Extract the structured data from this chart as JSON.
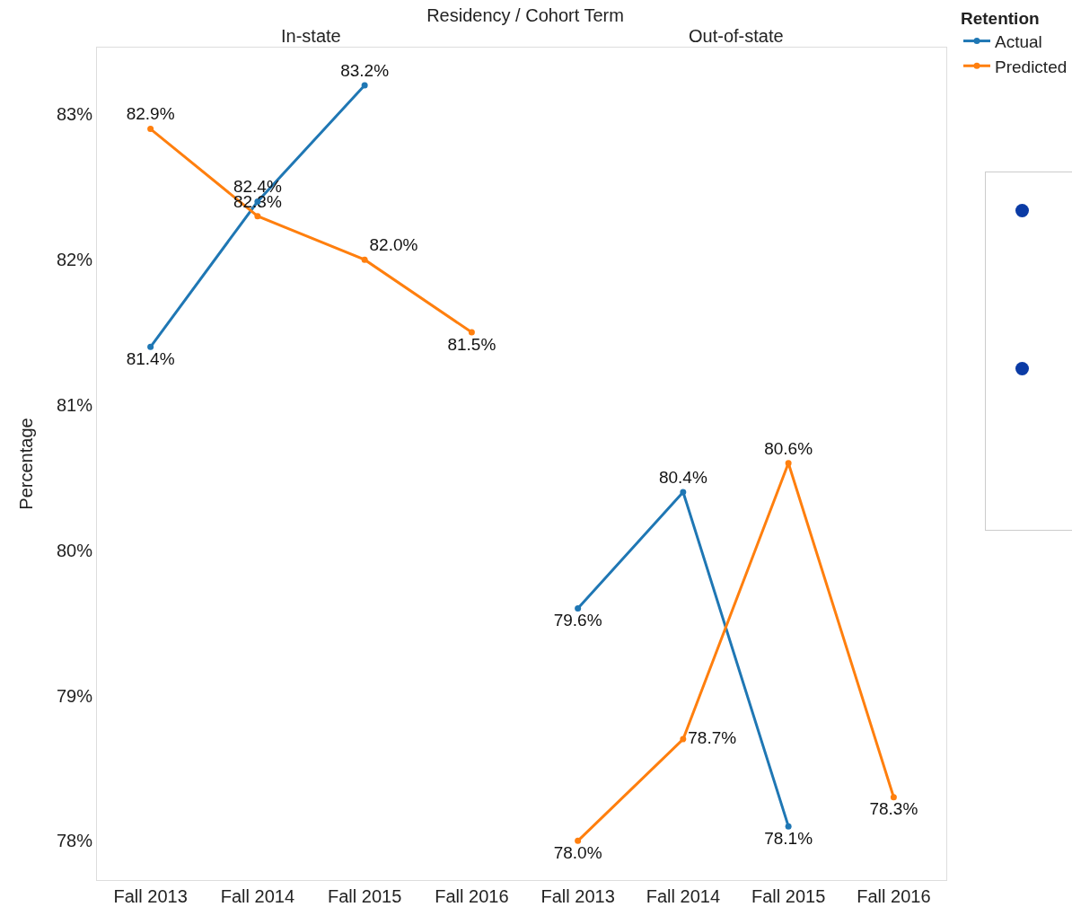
{
  "chart_data": [
    {
      "type": "line",
      "title": "Residency  /  Cohort Term",
      "subtitle": "In-state",
      "ylabel": "Percentage",
      "categories": [
        "Fall 2013",
        "Fall 2014",
        "Fall 2015",
        "Fall 2016"
      ],
      "series": [
        {
          "color": "#1f77b4",
          "values": [
            81.4,
            82.4,
            83.2,
            null
          ],
          "value_labels": [
            "81.4%",
            "82.4%",
            "83.2%",
            null
          ]
        },
        {
          "color": "#ff7f0e",
          "values": [
            82.9,
            82.3,
            82.0,
            81.5
          ],
          "value_labels": [
            "82.9%",
            "82.3%",
            "82.0%",
            "81.5%"
          ]
        }
      ],
      "ylim": [
        77.73,
        83.46
      ],
      "yticks": [
        {
          "value": 78,
          "label": "78%"
        },
        {
          "value": 79,
          "label": "79%"
        },
        {
          "value": 80,
          "label": "80%"
        },
        {
          "value": 81,
          "label": "81%"
        },
        {
          "value": 82,
          "label": "82%"
        },
        {
          "value": 83,
          "label": "83%"
        }
      ],
      "marker": "circle",
      "line_style": "solid",
      "legend": false
    },
    {
      "type": "line",
      "subtitle": "Out-of-state",
      "categories": [
        "Fall 2013",
        "Fall 2014",
        "Fall 2015",
        "Fall 2016"
      ],
      "series": [
        {
          "name": "Actual",
          "color": "#1f77b4",
          "values": [
            79.6,
            80.4,
            78.1,
            null
          ],
          "value_labels": [
            "79.6%",
            "80.4%",
            "78.1%",
            null
          ]
        },
        {
          "name": "Predicted",
          "color": "#ff7f0e",
          "values": [
            78.0,
            78.7,
            80.6,
            78.3
          ],
          "value_labels": [
            "78.0%",
            "78.7%",
            "80.6%",
            "78.3%"
          ]
        }
      ],
      "ylim": [
        77.73,
        83.46
      ],
      "marker": "circle",
      "line_style": "solid",
      "legend": "top right",
      "legend_title": "Retention",
      "tick_labels": "x"
    }
  ]
}
